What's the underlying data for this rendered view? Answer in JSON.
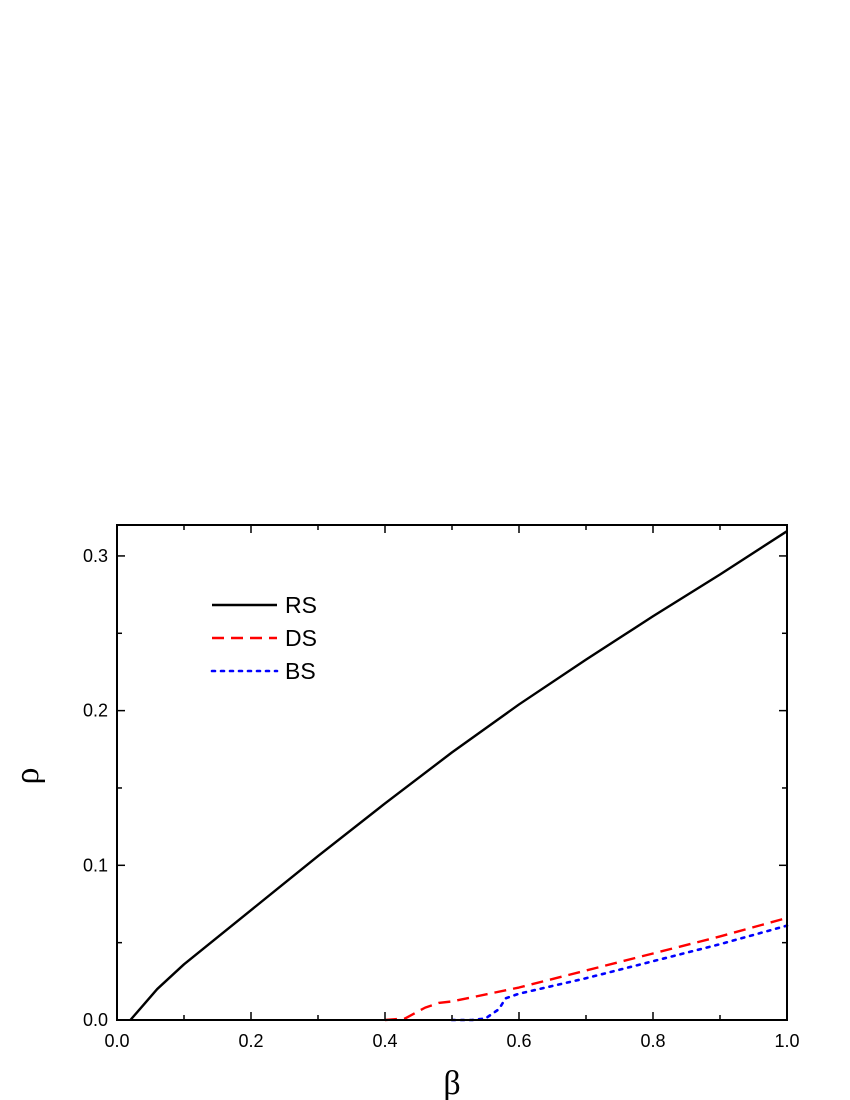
{
  "chart_data": {
    "type": "line",
    "xlabel": "β",
    "ylabel": "ρ",
    "xlim": [
      0.0,
      1.0
    ],
    "ylim": [
      0.0,
      0.32
    ],
    "xticks": [
      "0.0",
      "0.2",
      "0.4",
      "0.6",
      "0.8",
      "1.0"
    ],
    "yticks": [
      "0.0",
      "0.1",
      "0.2",
      "0.3"
    ],
    "legend_position": "top-left",
    "grid": false,
    "series": [
      {
        "name": "RS",
        "color": "#000000",
        "style": "solid",
        "x": [
          0.02,
          0.04,
          0.06,
          0.1,
          0.2,
          0.3,
          0.4,
          0.5,
          0.6,
          0.7,
          0.8,
          0.9,
          1.0
        ],
        "y": [
          0.0,
          0.01,
          0.02,
          0.036,
          0.071,
          0.106,
          0.14,
          0.173,
          0.204,
          0.233,
          0.261,
          0.288,
          0.316
        ]
      },
      {
        "name": "DS",
        "color": "#ff0000",
        "style": "dashed",
        "x": [
          0.4,
          0.43,
          0.46,
          0.48,
          0.5,
          0.6,
          0.7,
          0.8,
          0.9,
          1.0
        ],
        "y": [
          0.0,
          0.001,
          0.008,
          0.011,
          0.012,
          0.021,
          0.032,
          0.043,
          0.054,
          0.066
        ]
      },
      {
        "name": "BS",
        "color": "#0000ff",
        "style": "dotted",
        "x": [
          0.5,
          0.53,
          0.55,
          0.57,
          0.58,
          0.6,
          0.7,
          0.8,
          0.9,
          1.0
        ],
        "y": [
          0.0,
          0.0,
          0.001,
          0.007,
          0.014,
          0.017,
          0.027,
          0.038,
          0.049,
          0.061
        ]
      }
    ]
  }
}
